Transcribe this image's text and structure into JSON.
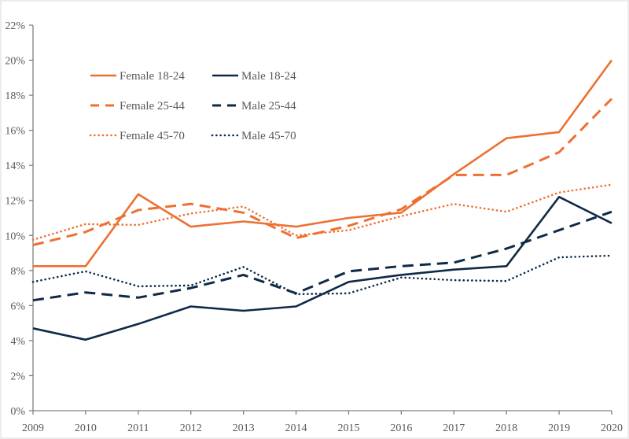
{
  "chart_data": {
    "type": "line",
    "title": "",
    "xlabel": "",
    "ylabel": "",
    "x": [
      2009,
      2010,
      2011,
      2012,
      2013,
      2014,
      2015,
      2016,
      2017,
      2018,
      2019,
      2020
    ],
    "x_tick_labels": [
      "2009",
      "2010",
      "2011",
      "2012",
      "2013",
      "2014",
      "2015",
      "2016",
      "2017",
      "2018",
      "2019",
      "2020"
    ],
    "ylim": [
      0,
      22
    ],
    "y_ticks": [
      0,
      2,
      4,
      6,
      8,
      10,
      12,
      14,
      16,
      18,
      20,
      22
    ],
    "y_tick_labels": [
      "0%",
      "2%",
      "4%",
      "6%",
      "8%",
      "10%",
      "12%",
      "14%",
      "16%",
      "18%",
      "20%",
      "22%"
    ],
    "grid": false,
    "legend_position": "top-left",
    "series": [
      {
        "name": "Female 18-24",
        "color": "#ed7031",
        "style": "solid",
        "values": [
          8.25,
          8.25,
          12.35,
          10.5,
          10.8,
          10.5,
          11.0,
          11.3,
          13.5,
          15.55,
          15.9,
          20.0
        ]
      },
      {
        "name": "Male 18-24",
        "color": "#0f2a47",
        "style": "solid",
        "values": [
          4.7,
          4.05,
          4.95,
          5.95,
          5.7,
          5.95,
          7.35,
          7.75,
          8.05,
          8.25,
          12.2,
          10.7
        ]
      },
      {
        "name": "Female 25-44",
        "color": "#ed7031",
        "style": "dashed",
        "values": [
          9.45,
          10.2,
          11.45,
          11.8,
          11.3,
          9.85,
          10.55,
          11.5,
          13.45,
          13.45,
          14.75,
          17.8
        ]
      },
      {
        "name": "Male 25-44",
        "color": "#0f2a47",
        "style": "dashed",
        "values": [
          6.3,
          6.75,
          6.45,
          7.0,
          7.75,
          6.7,
          7.95,
          8.25,
          8.45,
          9.25,
          10.3,
          11.35
        ]
      },
      {
        "name": "Female 45-70",
        "color": "#ed7031",
        "style": "dotted",
        "values": [
          9.75,
          10.65,
          10.6,
          11.25,
          11.65,
          10.0,
          10.3,
          11.1,
          11.8,
          11.35,
          12.45,
          12.9
        ]
      },
      {
        "name": "Male 45-70",
        "color": "#0f2a47",
        "style": "dotted",
        "values": [
          7.35,
          7.95,
          7.1,
          7.15,
          8.2,
          6.65,
          6.7,
          7.6,
          7.45,
          7.4,
          8.75,
          8.85
        ]
      }
    ]
  }
}
